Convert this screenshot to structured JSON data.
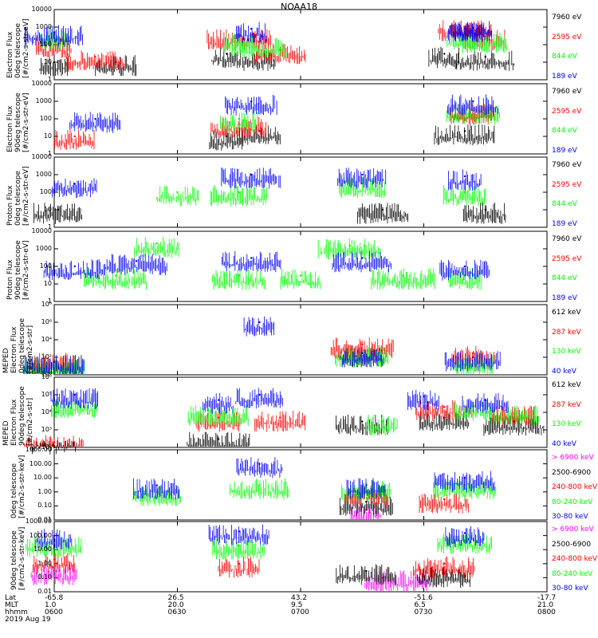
{
  "title": "NOAA18",
  "colors": {
    "black": "#000000",
    "red": "#ff0000",
    "green": "#00ff00",
    "blue": "#0000ff",
    "magenta": "#ff00ff"
  },
  "panels": [
    {
      "ylabel": [
        "Electron Flux",
        "0deg telescope",
        "[#/cm2-s-str-eV]"
      ],
      "ticks": [
        "10000",
        "1000",
        "100",
        "10",
        "1"
      ],
      "legend": [
        {
          "label": "7960 eV",
          "color": "black"
        },
        {
          "label": "2595 eV",
          "color": "red"
        },
        {
          "label": "844 eV",
          "color": "green"
        },
        {
          "label": "189 eV",
          "color": "blue"
        }
      ]
    },
    {
      "ylabel": [
        "Electron Flux",
        "90deg telescope",
        "[#/cm2-s-str-eV]"
      ],
      "ticks": [
        "10000",
        "1000",
        "100",
        "10",
        "1"
      ],
      "legend": [
        {
          "label": "7960 eV",
          "color": "black"
        },
        {
          "label": "2595 eV",
          "color": "red"
        },
        {
          "label": "844 eV",
          "color": "green"
        },
        {
          "label": "189 eV",
          "color": "blue"
        }
      ]
    },
    {
      "ylabel": [
        "Proton Flux",
        "0deg telescope",
        "[#/cm2-s-str-eV]"
      ],
      "ticks": [
        "10000",
        "1000",
        "100",
        "10",
        "1"
      ],
      "legend": [
        {
          "label": "7960 eV",
          "color": "black"
        },
        {
          "label": "2595 eV",
          "color": "red"
        },
        {
          "label": "844 eV",
          "color": "green"
        },
        {
          "label": "189 eV",
          "color": "blue"
        }
      ]
    },
    {
      "ylabel": [
        "Proton Flux",
        "90deg telescope",
        "[#/cm2-s-str-eV]"
      ],
      "ticks": [
        "10000",
        "1000",
        "100",
        "10",
        "1"
      ],
      "legend": [
        {
          "label": "7960 eV",
          "color": "black"
        },
        {
          "label": "2595 eV",
          "color": "red"
        },
        {
          "label": "844 eV",
          "color": "green"
        },
        {
          "label": "189 eV",
          "color": "blue"
        }
      ]
    },
    {
      "ylabel": [
        "MEPED",
        "Electron Flux",
        "0deg telescope",
        "[#/cm2-s-str]"
      ],
      "ticks": [
        "10⁸",
        "10⁶",
        "10⁴",
        "10²",
        "10⁰"
      ],
      "legend": [
        {
          "label": "612 keV",
          "color": "black"
        },
        {
          "label": "287 keV",
          "color": "red"
        },
        {
          "label": "130 keV",
          "color": "green"
        },
        {
          "label": "40 keV",
          "color": "blue"
        }
      ]
    },
    {
      "ylabel": [
        "MEPED",
        "Electron Flux",
        "90deg telescope",
        "[#/cm2-s-str]"
      ],
      "ticks": [
        "10⁶",
        "10⁵",
        "10⁴",
        "10³",
        "10²"
      ],
      "legend": [
        {
          "label": "612 keV",
          "color": "black"
        },
        {
          "label": "287 keV",
          "color": "red"
        },
        {
          "label": "130 keV",
          "color": "green"
        },
        {
          "label": "40 keV",
          "color": "blue"
        }
      ]
    },
    {
      "ylabel": [
        "0deg telescope",
        "[#/cm2-s-str-keV]"
      ],
      "ticks": [
        "1000.00",
        "100.00",
        "10.00",
        "1.00",
        "0.10",
        "0.01"
      ],
      "legend": [
        {
          "label": "> 6900 keV",
          "color": "magenta"
        },
        {
          "label": "2500-6900",
          "color": "black"
        },
        {
          "label": "240-800 keV",
          "color": "red"
        },
        {
          "label": "80-240 keV",
          "color": "green"
        },
        {
          "label": "30-80 keV",
          "color": "blue"
        }
      ]
    },
    {
      "ylabel": [
        "90deg telescope",
        "[#/cm2-s-str-keV]"
      ],
      "ticks": [
        "1000.00",
        "100.00",
        "10.00",
        "1.00",
        "0.10",
        "0.01"
      ],
      "legend": [
        {
          "label": "> 6900 keV",
          "color": "magenta"
        },
        {
          "label": "2500-6900",
          "color": "black"
        },
        {
          "label": "240-800 keV",
          "color": "red"
        },
        {
          "label": "80-240 keV",
          "color": "green"
        },
        {
          "label": "30-80 keV",
          "color": "blue"
        }
      ]
    }
  ],
  "xaxis": {
    "row_labels": [
      "Lat",
      "MLT",
      "hhmm"
    ],
    "date": "2019 Aug 19",
    "ticks": [
      {
        "lat": "-65.8",
        "mlt": "1.0",
        "hhmm": "0600"
      },
      {
        "lat": "26.5",
        "mlt": "20.0",
        "hhmm": "0630"
      },
      {
        "lat": "43.2",
        "mlt": "9.5",
        "hhmm": "0700"
      },
      {
        "lat": "-51.6",
        "mlt": "6.5",
        "hhmm": "0730"
      },
      {
        "lat": "-17.7",
        "mlt": "21.0",
        "hhmm": "0800"
      }
    ]
  },
  "chart_data": [
    {
      "type": "line",
      "title": "NOAA18",
      "ylabel": "Electron Flux 0deg telescope [#/cm2-s-str-eV]",
      "ylim": [
        1,
        10000
      ],
      "yscale": "log",
      "xlabel": "hhmm",
      "xlim": [
        "0600",
        "0800"
      ],
      "series": [
        {
          "name": "7960 eV",
          "color": "black",
          "x": [
            "0600",
            "0615",
            "0642",
            "0650",
            "0735",
            "0745"
          ],
          "values": [
            10,
            10,
            30,
            20,
            30,
            20
          ]
        },
        {
          "name": "2595 eV",
          "color": "red",
          "x": [
            "0600",
            "0610",
            "0645",
            "0655",
            "0740",
            "0745"
          ],
          "values": [
            100,
            20,
            300,
            50,
            1000,
            300
          ]
        },
        {
          "name": "844 eV",
          "color": "green",
          "x": [
            "0600",
            "0645",
            "0650",
            "0740",
            "0745"
          ],
          "values": [
            300,
            200,
            100,
            300,
            200
          ]
        },
        {
          "name": "189 eV",
          "color": "blue",
          "x": [
            "0600",
            "0648",
            "0740",
            "0742"
          ],
          "values": [
            500,
            800,
            800,
            900
          ]
        }
      ]
    },
    {
      "type": "line",
      "ylabel": "Electron Flux 90deg telescope [#/cm2-s-str-eV]",
      "ylim": [
        1,
        10000
      ],
      "yscale": "log",
      "series": [
        {
          "name": "7960 eV",
          "color": "black",
          "x": [
            "0642",
            "0650",
            "0740"
          ],
          "values": [
            10,
            20,
            20
          ]
        },
        {
          "name": "2595 eV",
          "color": "red",
          "x": [
            "0605",
            "0645",
            "0742"
          ],
          "values": [
            10,
            50,
            300
          ]
        },
        {
          "name": "844 eV",
          "color": "green",
          "x": [
            "0645",
            "0742"
          ],
          "values": [
            100,
            300
          ]
        },
        {
          "name": "189 eV",
          "color": "blue",
          "x": [
            "0610",
            "0648",
            "0742"
          ],
          "values": [
            100,
            1000,
            1000
          ]
        }
      ]
    },
    {
      "type": "line",
      "ylabel": "Proton Flux 0deg telescope [#/cm2-s-str-eV]",
      "ylim": [
        1,
        10000
      ],
      "yscale": "log",
      "series": [
        {
          "name": "7960 eV",
          "color": "black",
          "x": [
            "0601",
            "0720",
            "0745"
          ],
          "values": [
            10,
            10,
            10
          ]
        },
        {
          "name": "844 eV",
          "color": "green",
          "x": [
            "0630",
            "0645",
            "0715",
            "0740"
          ],
          "values": [
            100,
            100,
            300,
            100
          ]
        },
        {
          "name": "189 eV",
          "color": "blue",
          "x": [
            "0605",
            "0648",
            "0715",
            "0740"
          ],
          "values": [
            300,
            1000,
            1000,
            800
          ]
        }
      ]
    },
    {
      "type": "line",
      "ylabel": "Proton Flux 90deg telescope [#/cm2-s-str-eV]",
      "ylim": [
        1,
        10000
      ],
      "yscale": "log",
      "series": [
        {
          "name": "844 eV",
          "color": "green",
          "x": [
            "0615",
            "0625",
            "0645",
            "0700",
            "0712",
            "0725",
            "0740"
          ],
          "values": [
            30,
            2000,
            30,
            30,
            1500,
            30,
            30
          ]
        },
        {
          "name": "189 eV",
          "color": "blue",
          "x": [
            "0605",
            "0620",
            "0648",
            "0715",
            "0740"
          ],
          "values": [
            100,
            200,
            300,
            300,
            100
          ]
        }
      ]
    },
    {
      "type": "line",
      "ylabel": "MEPED Electron Flux 0deg telescope [#/cm2-s-str]",
      "ylim": [
        1,
        100000000
      ],
      "yscale": "log",
      "series": [
        {
          "name": "612 keV",
          "color": "black",
          "x": [
            "0600",
            "0715",
            "0742"
          ],
          "values": [
            30,
            300,
            100
          ]
        },
        {
          "name": "287 keV",
          "color": "red",
          "x": [
            "0600",
            "0715",
            "0742"
          ],
          "values": [
            50,
            3000,
            300
          ]
        },
        {
          "name": "130 keV",
          "color": "green",
          "x": [
            "0600",
            "0715",
            "0742"
          ],
          "values": [
            10,
            300,
            30
          ]
        },
        {
          "name": "40 keV",
          "color": "blue",
          "x": [
            "0600",
            "0650",
            "0715",
            "0742"
          ],
          "values": [
            30,
            1000000,
            300,
            100
          ]
        }
      ]
    },
    {
      "type": "line",
      "ylabel": "MEPED Electron Flux 90deg telescope [#/cm2-s-str]",
      "ylim": [
        100,
        1000000
      ],
      "yscale": "log",
      "series": [
        {
          "name": "612 keV",
          "color": "black",
          "x": [
            "0600",
            "0640",
            "0715",
            "0735",
            "0752"
          ],
          "values": [
            100,
            300,
            3000,
            5000,
            3000
          ]
        },
        {
          "name": "287 keV",
          "color": "red",
          "x": [
            "0600",
            "0640",
            "0655",
            "0735",
            "0752"
          ],
          "values": [
            200,
            5000,
            5000,
            20000,
            10000
          ]
        },
        {
          "name": "130 keV",
          "color": "green",
          "x": [
            "0605",
            "0640",
            "0720",
            "0742",
            "0752"
          ],
          "values": [
            30000,
            10000,
            3000,
            20000,
            10000
          ]
        },
        {
          "name": "40 keV",
          "color": "blue",
          "x": [
            "0605",
            "0640",
            "0650",
            "0730",
            "0745"
          ],
          "values": [
            100000,
            50000,
            100000,
            80000,
            50000
          ]
        }
      ]
    },
    {
      "type": "line",
      "ylabel": "0deg telescope [#/cm2-s-str-keV]",
      "ylim": [
        0.01,
        1000
      ],
      "yscale": "log",
      "series": [
        {
          "name": "> 6900 keV",
          "color": "magenta",
          "x": [
            "0716"
          ],
          "values": [
            0.05
          ]
        },
        {
          "name": "2500-6900",
          "color": "black",
          "x": [
            "0716"
          ],
          "values": [
            0.2
          ]
        },
        {
          "name": "240-800 keV",
          "color": "red",
          "x": [
            "0716",
            "0735"
          ],
          "values": [
            1,
            0.3
          ]
        },
        {
          "name": "80-240 keV",
          "color": "green",
          "x": [
            "0625",
            "0650",
            "0716",
            "0740"
          ],
          "values": [
            1,
            3,
            2,
            3
          ]
        },
        {
          "name": "30-80 keV",
          "color": "blue",
          "x": [
            "0625",
            "0650",
            "0716",
            "0740"
          ],
          "values": [
            3,
            100,
            3,
            10
          ]
        }
      ]
    },
    {
      "type": "line",
      "ylabel": "90deg telescope [#/cm2-s-str-keV]",
      "ylim": [
        0.01,
        1000
      ],
      "yscale": "log",
      "series": [
        {
          "name": "> 6900 keV",
          "color": "magenta",
          "x": [
            "0600",
            "0720",
            "0728"
          ],
          "values": [
            0.3,
            0.1,
            0.1
          ]
        },
        {
          "name": "2500-6900",
          "color": "black",
          "x": [
            "0716",
            "0735"
          ],
          "values": [
            0.3,
            0.2
          ]
        },
        {
          "name": "240-800 keV",
          "color": "red",
          "x": [
            "0600",
            "0645",
            "0735"
          ],
          "values": [
            2,
            1,
            1
          ]
        },
        {
          "name": "80-240 keV",
          "color": "green",
          "x": [
            "0600",
            "0645",
            "0740"
          ],
          "values": [
            30,
            20,
            50
          ]
        },
        {
          "name": "30-80 keV",
          "color": "blue",
          "x": [
            "0600",
            "0645",
            "0740"
          ],
          "values": [
            100,
            200,
            150
          ]
        }
      ]
    }
  ]
}
